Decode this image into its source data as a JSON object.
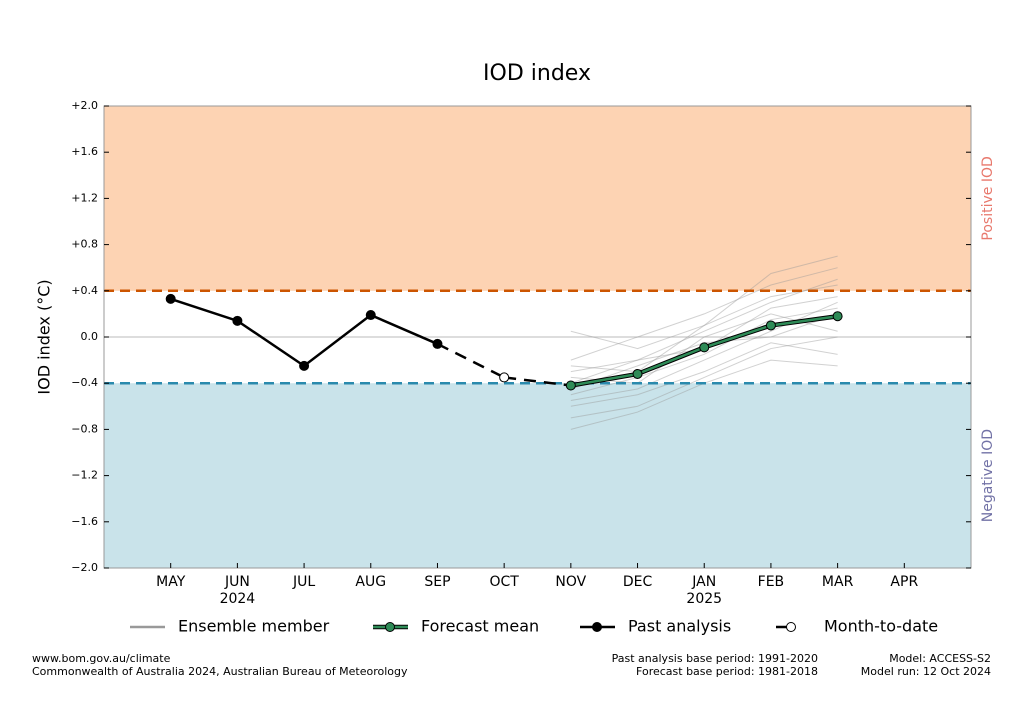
{
  "chart_data": {
    "type": "line",
    "title": "IOD index",
    "y_label": "IOD index (°C)",
    "categories": [
      "MAY",
      "JUN",
      "JUL",
      "AUG",
      "SEP",
      "OCT",
      "NOV",
      "DEC",
      "JAN",
      "FEB",
      "MAR",
      "APR"
    ],
    "category_years": [
      null,
      "2024",
      null,
      null,
      null,
      null,
      null,
      null,
      "2025",
      null,
      null,
      null
    ],
    "ylim": [
      -2.0,
      2.0
    ],
    "yticks": [
      {
        "value": -2.0,
        "label": "−2.0"
      },
      {
        "value": -1.6,
        "label": "−1.6"
      },
      {
        "value": -1.2,
        "label": "−1.2"
      },
      {
        "value": -0.8,
        "label": "−0.8"
      },
      {
        "value": -0.4,
        "label": "−0.4"
      },
      {
        "value": 0,
        "label": "0.0"
      },
      {
        "value": 0.4,
        "label": "+0.4"
      },
      {
        "value": 0.8,
        "label": "+0.8"
      },
      {
        "value": 1.2,
        "label": "+1.2"
      },
      {
        "value": 1.6,
        "label": "+1.6"
      },
      {
        "value": 2.0,
        "label": "+2.0"
      }
    ],
    "thresholds": [
      {
        "value": 0.4,
        "color": "#cc5500",
        "fill": "#fdd3b3",
        "label": "Positive IOD",
        "label_color": "#e8786c"
      },
      {
        "value": -0.4,
        "color": "#2a8aad",
        "fill": "#c9e3ea",
        "label": "Negative IOD",
        "label_color": "#7272a6"
      }
    ],
    "series": [
      {
        "name": "Ensemble member",
        "color": "#999999",
        "members": [
          [
            null,
            null,
            null,
            null,
            null,
            null,
            -0.55,
            -0.45,
            -0.2,
            0.05,
            0.3,
            null
          ],
          [
            null,
            null,
            null,
            null,
            null,
            null,
            -0.3,
            -0.2,
            0.05,
            0.3,
            0.5,
            null
          ],
          [
            null,
            null,
            null,
            null,
            null,
            null,
            -0.7,
            -0.6,
            -0.35,
            -0.1,
            0.0,
            null
          ],
          [
            null,
            null,
            null,
            null,
            null,
            null,
            -0.2,
            0.0,
            0.2,
            0.45,
            0.6,
            null
          ],
          [
            null,
            null,
            null,
            null,
            null,
            null,
            -0.5,
            -0.35,
            -0.15,
            0.15,
            0.25,
            null
          ],
          [
            null,
            null,
            null,
            null,
            null,
            null,
            -0.35,
            -0.4,
            0.0,
            0.2,
            0.05,
            null
          ],
          [
            null,
            null,
            null,
            null,
            null,
            null,
            -0.6,
            -0.5,
            -0.3,
            -0.05,
            -0.15,
            null
          ],
          [
            null,
            null,
            null,
            null,
            null,
            null,
            0.05,
            -0.1,
            0.1,
            0.35,
            0.45,
            null
          ],
          [
            null,
            null,
            null,
            null,
            null,
            null,
            -0.45,
            -0.25,
            -0.05,
            0.0,
            0.2,
            null
          ],
          [
            null,
            null,
            null,
            null,
            null,
            null,
            -0.8,
            -0.65,
            -0.4,
            -0.2,
            -0.25,
            null
          ],
          [
            null,
            null,
            null,
            null,
            null,
            null,
            -0.25,
            -0.3,
            0.1,
            0.55,
            0.7,
            null
          ],
          [
            null,
            null,
            null,
            null,
            null,
            null,
            -0.4,
            -0.2,
            -0.1,
            0.25,
            0.35,
            null
          ]
        ]
      },
      {
        "name": "Forecast mean",
        "color": "#2e8b57",
        "values": [
          null,
          null,
          null,
          null,
          null,
          null,
          -0.42,
          -0.32,
          -0.09,
          0.1,
          0.18,
          null
        ]
      },
      {
        "name": "Past analysis",
        "color": "#000000",
        "values": [
          0.33,
          0.14,
          -0.25,
          0.19,
          -0.06,
          null,
          null,
          null,
          null,
          null,
          null,
          null
        ]
      },
      {
        "name": "Month-to-date",
        "color": "#000000",
        "values": [
          null,
          null,
          null,
          null,
          null,
          -0.35,
          null,
          null,
          null,
          null,
          null,
          null
        ]
      }
    ],
    "footer": {
      "left": [
        "www.bom.gov.au/climate",
        "Commonwealth of Australia 2024, Australian Bureau of Meteorology"
      ],
      "center": [
        "Past analysis base period: 1991-2020",
        "Forecast base period: 1981-2018"
      ],
      "right": [
        "Model: ACCESS-S2",
        "Model run: 12 Oct 2024"
      ]
    }
  }
}
